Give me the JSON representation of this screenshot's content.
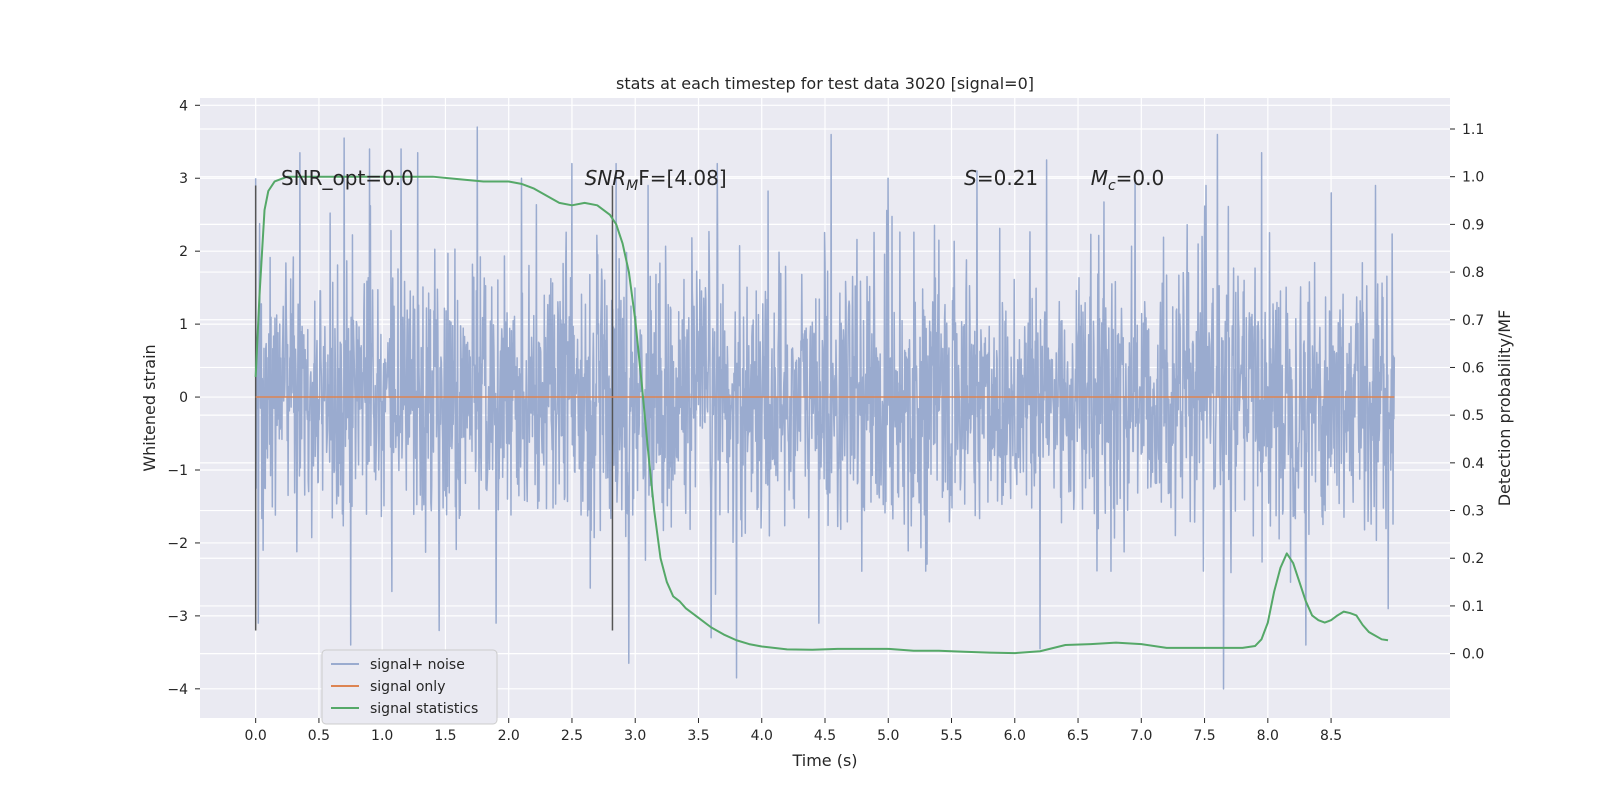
{
  "chart_data": {
    "type": "line",
    "title": "stats at each timestep for test data 3020 [signal=0]",
    "xlabel": "Time (s)",
    "ylabel_left": "Whitened strain",
    "ylabel_right": "Detection probability/MF",
    "xlim": [
      -0.44,
      9.44
    ],
    "ylim_left": [
      -4.4,
      4.1
    ],
    "ylim_right": [
      -0.135,
      1.165
    ],
    "x_ticks": [
      "0.0",
      "0.5",
      "1.0",
      "1.5",
      "2.0",
      "2.5",
      "3.0",
      "3.5",
      "4.0",
      "4.5",
      "5.0",
      "5.5",
      "6.0",
      "6.5",
      "7.0",
      "7.5",
      "8.0",
      "8.5"
    ],
    "y_left_ticks": [
      "4",
      "3",
      "2",
      "1",
      "0",
      "−1",
      "−2",
      "−3",
      "−4"
    ],
    "y_right_ticks": [
      "1.1",
      "1.0",
      "0.9",
      "0.8",
      "0.7",
      "0.6",
      "0.5",
      "0.4",
      "0.3",
      "0.2",
      "0.1",
      "0.0"
    ],
    "grid": true,
    "legend_position": "lower-left",
    "series": [
      {
        "name": "signal+ noise",
        "color": "#9aabcf",
        "axis": "left",
        "x_range": [
          0.0,
          9.0
        ],
        "envelope_top_spikes": [
          [
            0.0,
            3.0
          ],
          [
            0.35,
            3.35
          ],
          [
            0.7,
            3.55
          ],
          [
            0.9,
            3.4
          ],
          [
            1.15,
            3.4
          ],
          [
            1.28,
            3.35
          ],
          [
            1.75,
            3.7
          ],
          [
            2.1,
            3.0
          ],
          [
            2.5,
            3.2
          ],
          [
            2.85,
            3.2
          ],
          [
            3.1,
            2.9
          ],
          [
            3.65,
            3.2
          ],
          [
            4.55,
            3.6
          ],
          [
            5.0,
            3.0
          ],
          [
            5.7,
            3.1
          ],
          [
            6.25,
            3.25
          ],
          [
            6.95,
            3.0
          ],
          [
            7.6,
            3.6
          ],
          [
            7.95,
            3.35
          ],
          [
            8.5,
            2.8
          ],
          [
            8.85,
            2.9
          ]
        ],
        "envelope_bottom_spikes": [
          [
            0.02,
            -3.1
          ],
          [
            0.75,
            -3.4
          ],
          [
            1.45,
            -3.2
          ],
          [
            1.9,
            -3.1
          ],
          [
            2.95,
            -3.65
          ],
          [
            3.6,
            -3.3
          ],
          [
            3.8,
            -3.85
          ],
          [
            4.45,
            -3.1
          ],
          [
            6.2,
            -3.45
          ],
          [
            7.65,
            -4.0
          ],
          [
            8.3,
            -3.4
          ],
          [
            8.95,
            -2.9
          ]
        ]
      },
      {
        "name": "signal only",
        "color": "#dd8452",
        "axis": "left",
        "x": [
          0.0,
          9.0
        ],
        "y": [
          0.0,
          0.0
        ]
      },
      {
        "name": "signal statistics",
        "color": "#55a868",
        "axis": "right",
        "x": [
          0.0,
          0.03,
          0.07,
          0.1,
          0.15,
          0.25,
          0.4,
          0.6,
          0.8,
          1.0,
          1.2,
          1.4,
          1.6,
          1.8,
          2.0,
          2.1,
          2.2,
          2.3,
          2.4,
          2.5,
          2.6,
          2.7,
          2.75,
          2.8,
          2.85,
          2.9,
          2.95,
          3.0,
          3.05,
          3.1,
          3.15,
          3.2,
          3.25,
          3.3,
          3.35,
          3.4,
          3.5,
          3.6,
          3.7,
          3.8,
          3.9,
          4.0,
          4.2,
          4.4,
          4.6,
          4.8,
          5.0,
          5.2,
          5.4,
          5.6,
          5.8,
          6.0,
          6.2,
          6.4,
          6.6,
          6.8,
          7.0,
          7.2,
          7.4,
          7.6,
          7.8,
          7.9,
          7.95,
          8.0,
          8.05,
          8.1,
          8.15,
          8.2,
          8.25,
          8.3,
          8.35,
          8.4,
          8.45,
          8.5,
          8.55,
          8.6,
          8.65,
          8.7,
          8.75,
          8.8,
          8.9,
          8.95
        ],
        "y": [
          0.58,
          0.75,
          0.93,
          0.97,
          0.99,
          1.0,
          1.0,
          1.0,
          1.0,
          1.0,
          1.0,
          1.0,
          0.995,
          0.99,
          0.99,
          0.985,
          0.975,
          0.96,
          0.945,
          0.94,
          0.945,
          0.94,
          0.93,
          0.92,
          0.9,
          0.86,
          0.8,
          0.7,
          0.57,
          0.43,
          0.3,
          0.2,
          0.15,
          0.12,
          0.11,
          0.095,
          0.075,
          0.055,
          0.04,
          0.028,
          0.02,
          0.015,
          0.009,
          0.008,
          0.01,
          0.01,
          0.01,
          0.006,
          0.006,
          0.004,
          0.002,
          0.001,
          0.005,
          0.018,
          0.02,
          0.023,
          0.02,
          0.012,
          0.012,
          0.012,
          0.012,
          0.016,
          0.03,
          0.065,
          0.13,
          0.18,
          0.21,
          0.19,
          0.15,
          0.11,
          0.08,
          0.07,
          0.065,
          0.07,
          0.08,
          0.088,
          0.085,
          0.08,
          0.06,
          0.045,
          0.03,
          0.028
        ]
      }
    ],
    "vertical_markers_x": [
      0.0,
      2.82
    ],
    "annotations": [
      {
        "id": "snr-opt",
        "prefix": "SNR_opt=0.0",
        "sub": "",
        "suffix": "",
        "x": 0.2,
        "y": 3.0
      },
      {
        "id": "snr-mf",
        "prefix": "SNR",
        "sub": "M",
        "suffix": "F=[4.08]",
        "x": 2.6,
        "y": 3.0
      },
      {
        "id": "s-stat",
        "prefix": "S",
        "sub": "",
        "suffix": "=0.21",
        "x": 5.6,
        "y": 3.0
      },
      {
        "id": "chirp-mass",
        "prefix": "M",
        "sub": "c",
        "suffix": "=0.0",
        "x": 6.6,
        "y": 3.0
      }
    ]
  }
}
